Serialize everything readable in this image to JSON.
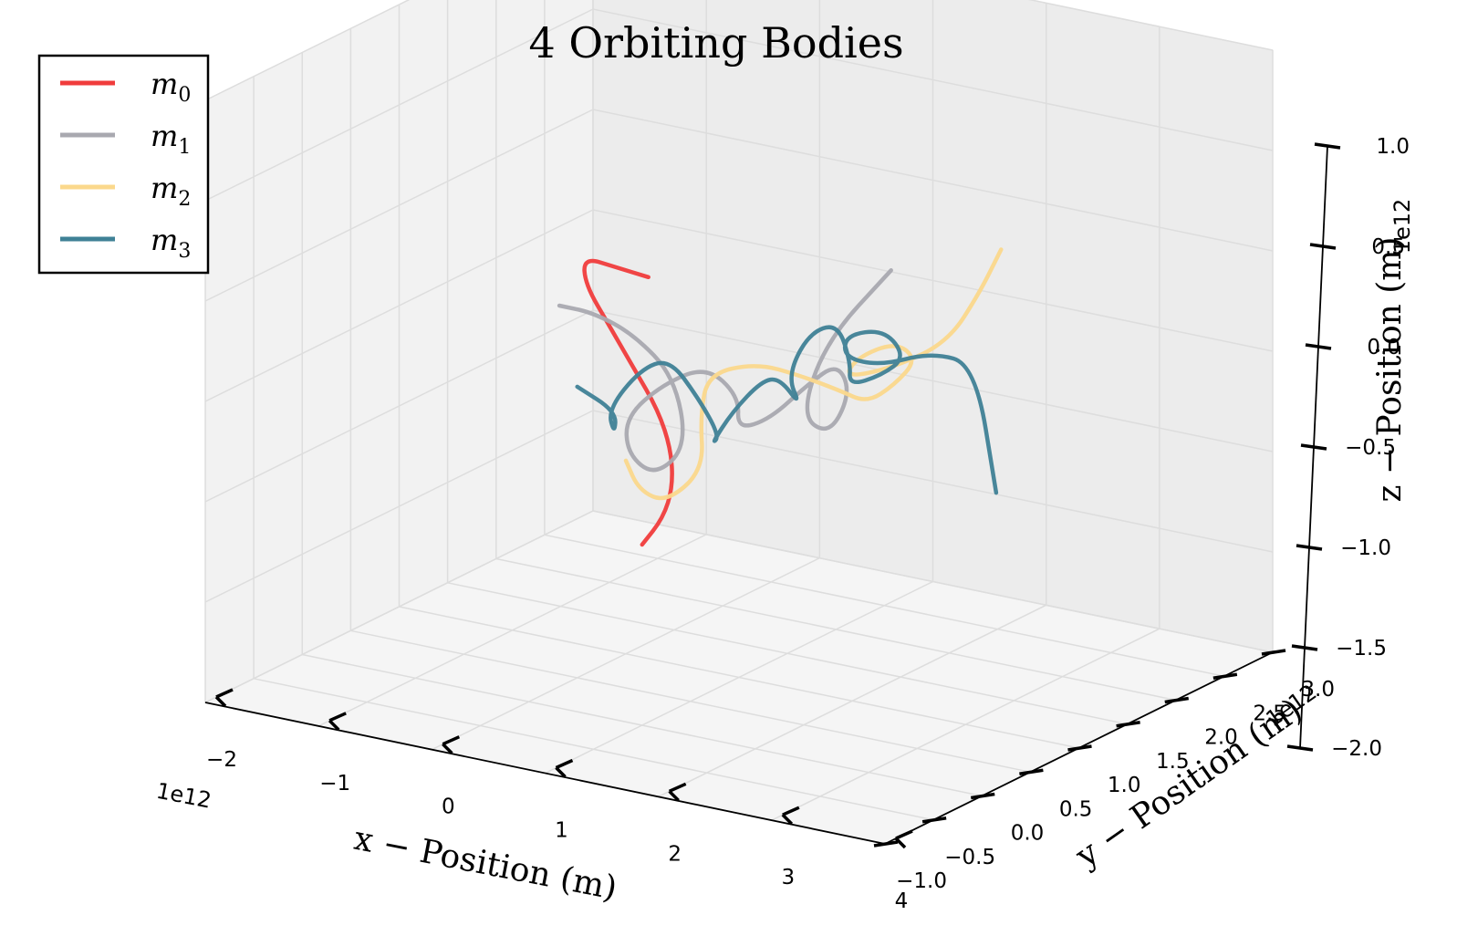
{
  "chart_data": {
    "type": "line",
    "projection": "3d",
    "title": "4 Orbiting Bodies",
    "xlabel": "x − Position (m)",
    "ylabel": "y − Position (m)",
    "zlabel": "z − Position (m)",
    "x_offset_text": "1e12",
    "y_offset_text": "1e12",
    "z_offset_text": "1e12",
    "xlim": [
      -2,
      4
    ],
    "ylim": [
      -1,
      3
    ],
    "zlim": [
      -2,
      1
    ],
    "x_ticks": [
      "−2",
      "−1",
      "0",
      "1",
      "2",
      "3",
      "4"
    ],
    "y_ticks": [
      "−1.0",
      "−0.5",
      "0.0",
      "0.5",
      "1.0",
      "1.5",
      "2.0",
      "2.5",
      "3.0"
    ],
    "z_ticks": [
      "−2.0",
      "−1.5",
      "−1.0",
      "−0.5",
      "0.0",
      "0.5",
      "1.0"
    ],
    "grid": true,
    "legend_position": "top-left",
    "series": [
      {
        "name": "m",
        "sub": "0",
        "color": "#f03c3c",
        "x": [
          0.2,
          0.0,
          -0.2,
          -0.1,
          0.2,
          0.5,
          0.8,
          1.0,
          1.1,
          1.1,
          1.0
        ],
        "y": [
          1.0,
          0.9,
          0.8,
          0.7,
          0.6,
          0.5,
          0.4,
          0.3,
          0.2,
          0.1,
          0.0
        ],
        "z": [
          -0.1,
          -0.05,
          0.0,
          -0.1,
          -0.25,
          -0.4,
          -0.55,
          -0.7,
          -0.85,
          -0.98,
          -1.1
        ]
      },
      {
        "name": "m",
        "sub": "1",
        "color": "#a9a9b0",
        "x": [
          -0.5,
          -0.2,
          0.2,
          0.6,
          0.8,
          0.6,
          0.4,
          0.3,
          0.5,
          0.8,
          1.0,
          0.9,
          1.1,
          1.4,
          1.7,
          1.9,
          1.8,
          1.5,
          1.6,
          2.0
        ],
        "y": [
          0.9,
          0.9,
          0.85,
          0.8,
          0.7,
          0.6,
          0.55,
          0.65,
          0.8,
          0.9,
          1.0,
          1.1,
          1.2,
          1.25,
          1.2,
          1.1,
          1.0,
          1.05,
          1.2,
          1.4
        ],
        "z": [
          -0.3,
          -0.3,
          -0.35,
          -0.5,
          -0.8,
          -0.95,
          -0.85,
          -0.7,
          -0.55,
          -0.45,
          -0.6,
          -0.8,
          -0.75,
          -0.55,
          -0.4,
          -0.5,
          -0.7,
          -0.65,
          -0.3,
          0.05
        ]
      },
      {
        "name": "m",
        "sub": "2",
        "color": "#fbd88c",
        "x": [
          0.6,
          0.8,
          1.0,
          1.2,
          1.0,
          0.9,
          1.2,
          1.5,
          1.8,
          2.0,
          2.2,
          2.4,
          2.3,
          2.0,
          1.8,
          2.1,
          2.5,
          2.7,
          2.8
        ],
        "y": [
          0.3,
          0.2,
          0.25,
          0.4,
          0.6,
          0.8,
          0.95,
          1.05,
          1.1,
          1.15,
          1.2,
          1.2,
          1.1,
          1.05,
          1.15,
          1.3,
          1.4,
          1.5,
          1.6
        ],
        "z": [
          -0.8,
          -0.9,
          -0.95,
          -0.8,
          -0.6,
          -0.45,
          -0.4,
          -0.45,
          -0.5,
          -0.55,
          -0.45,
          -0.3,
          -0.2,
          -0.3,
          -0.45,
          -0.4,
          -0.25,
          0.0,
          0.2
        ]
      },
      {
        "name": "m",
        "sub": "3",
        "color": "#3f8196",
        "x": [
          0.0,
          0.3,
          0.2,
          0.1,
          0.3,
          0.6,
          0.9,
          1.0,
          0.8,
          0.9,
          1.2,
          1.4,
          1.5,
          1.3,
          1.4,
          1.7,
          1.9,
          1.8,
          2.0,
          2.3,
          2.2,
          1.9,
          1.8,
          2.0,
          2.4,
          2.7,
          2.8
        ],
        "y": [
          0.5,
          0.55,
          0.65,
          0.7,
          0.8,
          0.75,
          0.7,
          0.8,
          0.95,
          1.05,
          1.0,
          0.95,
          1.05,
          1.15,
          1.25,
          1.2,
          1.1,
          1.2,
          1.3,
          1.2,
          1.1,
          1.05,
          1.15,
          1.3,
          1.35,
          1.45,
          1.55
        ],
        "z": [
          -0.55,
          -0.65,
          -0.8,
          -0.7,
          -0.5,
          -0.4,
          -0.55,
          -0.75,
          -0.85,
          -0.7,
          -0.5,
          -0.45,
          -0.6,
          -0.5,
          -0.3,
          -0.2,
          -0.35,
          -0.5,
          -0.45,
          -0.3,
          -0.15,
          -0.2,
          -0.35,
          -0.4,
          -0.3,
          -0.35,
          -1.0
        ]
      }
    ]
  }
}
